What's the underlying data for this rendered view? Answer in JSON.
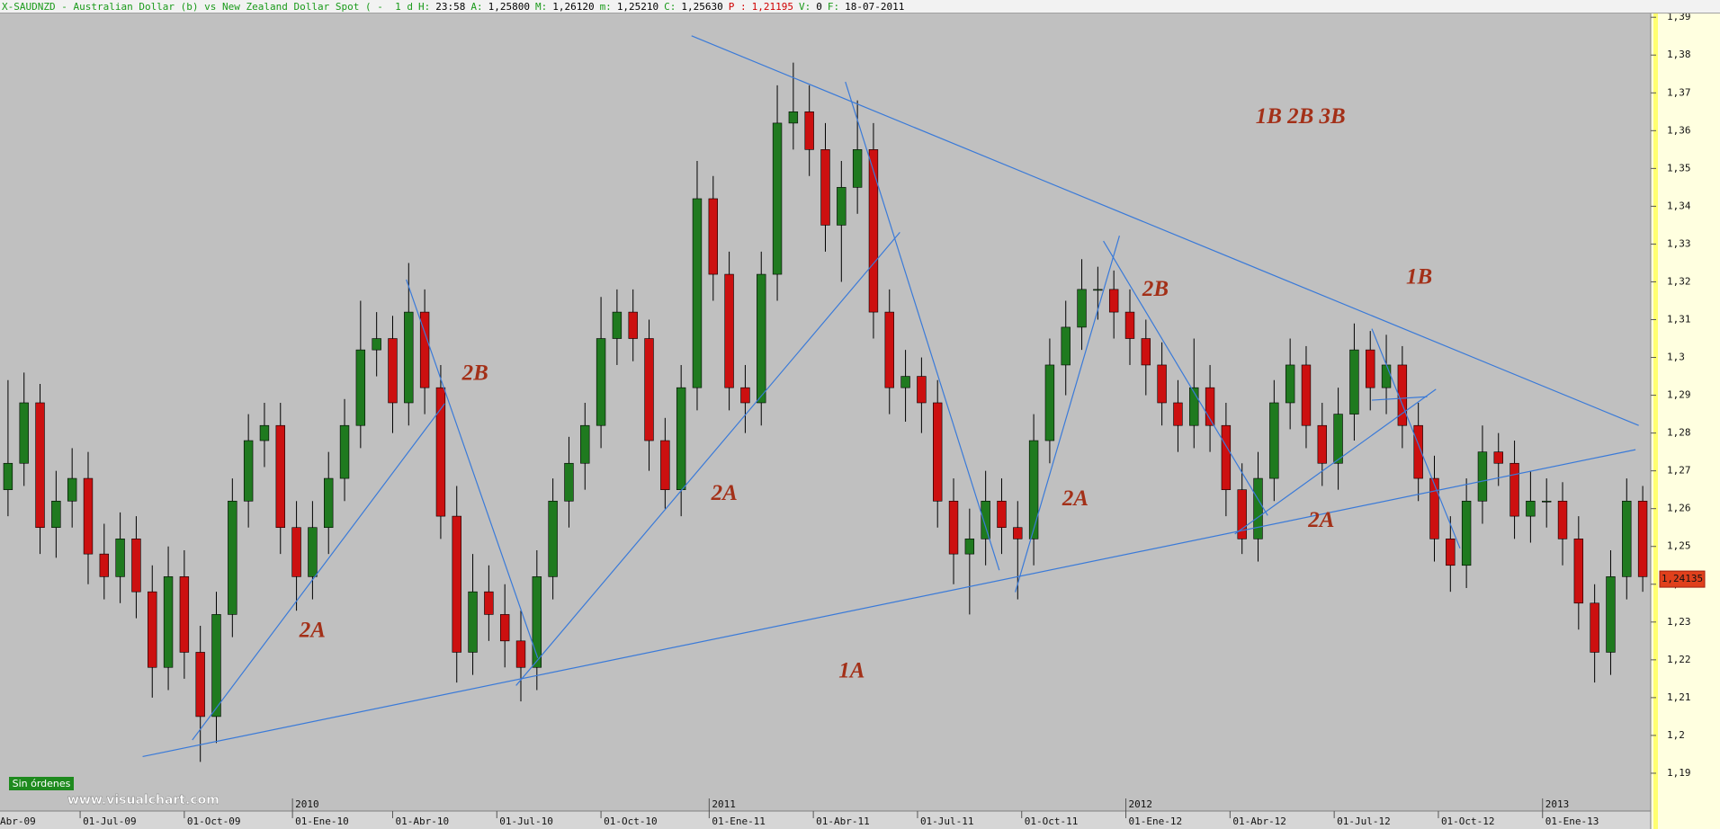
{
  "header": {
    "segments": [
      {
        "text": "X-SAUDNZD - Australian Dollar (b) vs New Zealand Dollar Spot ( -  1 d",
        "color": "#1a9a1a"
      },
      {
        "text": "H:",
        "color": "#1a9a1a"
      },
      {
        "text": "23:58",
        "color": "#000000"
      },
      {
        "text": "A:",
        "color": "#1a9a1a"
      },
      {
        "text": "1,25800",
        "color": "#000000"
      },
      {
        "text": "M:",
        "color": "#1a9a1a"
      },
      {
        "text": "1,26120",
        "color": "#000000"
      },
      {
        "text": "m:",
        "color": "#1a9a1a"
      },
      {
        "text": "1,25210",
        "color": "#000000"
      },
      {
        "text": "C:",
        "color": "#1a9a1a"
      },
      {
        "text": "1,25630",
        "color": "#000000"
      },
      {
        "text": "P :",
        "color": "#d00000"
      },
      {
        "text": "1,21195",
        "color": "#d00000"
      },
      {
        "text": "V:",
        "color": "#1a9a1a"
      },
      {
        "text": "0",
        "color": "#000000"
      },
      {
        "text": "F:",
        "color": "#1a9a1a"
      },
      {
        "text": "18-07-2011",
        "color": "#000000"
      }
    ]
  },
  "footer": {
    "status": "Sin órdenes",
    "watermark": "www.visualchart.com"
  },
  "chart_data": {
    "type": "candlestick",
    "up_color": "#1f7a1f",
    "down_color": "#cc1010",
    "line_color": "#3a7ad8",
    "annotation_color": "#a33018",
    "xlim": [
      0,
      206
    ],
    "ylim": [
      1.18,
      1.391
    ],
    "xticks": [
      {
        "value": -3,
        "label": "Abr-09"
      },
      {
        "value": 10,
        "label": "01-Jul-09"
      },
      {
        "value": 23,
        "label": "01-Oct-09"
      },
      {
        "value": 36.5,
        "label": "01-Ene-10"
      },
      {
        "value": 49,
        "label": "01-Abr-10"
      },
      {
        "value": 62,
        "label": "01-Jul-10"
      },
      {
        "value": 75,
        "label": "01-Oct-10"
      },
      {
        "value": 88.5,
        "label": "01-Ene-11"
      },
      {
        "value": 101.5,
        "label": "01-Abr-11"
      },
      {
        "value": 114.5,
        "label": "01-Jul-11"
      },
      {
        "value": 127.5,
        "label": "01-Oct-11"
      },
      {
        "value": 140.5,
        "label": "01-Ene-12"
      },
      {
        "value": 153.5,
        "label": "01-Abr-12"
      },
      {
        "value": 166.5,
        "label": "01-Jul-12"
      },
      {
        "value": 179.5,
        "label": "01-Oct-12"
      },
      {
        "value": 192.5,
        "label": "01-Ene-13"
      }
    ],
    "year_ticks": [
      {
        "value": 36.5,
        "label": "2010"
      },
      {
        "value": 88.5,
        "label": "2011"
      },
      {
        "value": 140.5,
        "label": "2012"
      },
      {
        "value": 192.5,
        "label": "2013"
      }
    ],
    "yticks": [
      {
        "value": 1.19,
        "label": "1,19"
      },
      {
        "value": 1.2,
        "label": "1,2"
      },
      {
        "value": 1.21,
        "label": "1,21"
      },
      {
        "value": 1.22,
        "label": "1,22"
      },
      {
        "value": 1.23,
        "label": "1,23"
      },
      {
        "value": 1.24,
        "label": "1,24"
      },
      {
        "value": 1.25,
        "label": "1,25"
      },
      {
        "value": 1.26,
        "label": "1,26"
      },
      {
        "value": 1.27,
        "label": "1,27"
      },
      {
        "value": 1.28,
        "label": "1,28"
      },
      {
        "value": 1.29,
        "label": "1,29"
      },
      {
        "value": 1.3,
        "label": "1,3"
      },
      {
        "value": 1.31,
        "label": "1,31"
      },
      {
        "value": 1.32,
        "label": "1,32"
      },
      {
        "value": 1.33,
        "label": "1,33"
      },
      {
        "value": 1.34,
        "label": "1,34"
      },
      {
        "value": 1.35,
        "label": "1,35"
      },
      {
        "value": 1.36,
        "label": "1,36"
      },
      {
        "value": 1.37,
        "label": "1,37"
      },
      {
        "value": 1.38,
        "label": "1,38"
      },
      {
        "value": 1.39,
        "label": "1,39"
      }
    ],
    "last_price": {
      "value": 1.24135,
      "label": "1,24135"
    },
    "candles": {
      "x": [
        1,
        3,
        5,
        7,
        9,
        11,
        13,
        15,
        17,
        19,
        21,
        23,
        25,
        27,
        29,
        31,
        33,
        35,
        37,
        39,
        41,
        43,
        45,
        47,
        49,
        51,
        53,
        55,
        57,
        59,
        61,
        63,
        65,
        67,
        69,
        71,
        73,
        75,
        77,
        79,
        81,
        83,
        85,
        87,
        89,
        91,
        93,
        95,
        97,
        99,
        101,
        103,
        105,
        107,
        109,
        111,
        113,
        115,
        117,
        119,
        121,
        123,
        125,
        127,
        129,
        131,
        133,
        135,
        137,
        139,
        141,
        143,
        145,
        147,
        149,
        151,
        153,
        155,
        157,
        159,
        161,
        163,
        165,
        167,
        169,
        171,
        173,
        175,
        177,
        179,
        181,
        183,
        185,
        187,
        189,
        191,
        193,
        195,
        197,
        199,
        201,
        203,
        205
      ],
      "open": [
        1.265,
        1.272,
        1.288,
        1.255,
        1.262,
        1.268,
        1.248,
        1.242,
        1.252,
        1.238,
        1.218,
        1.242,
        1.222,
        1.205,
        1.232,
        1.262,
        1.278,
        1.282,
        1.255,
        1.242,
        1.255,
        1.268,
        1.282,
        1.302,
        1.305,
        1.288,
        1.312,
        1.292,
        1.258,
        1.222,
        1.238,
        1.232,
        1.225,
        1.218,
        1.242,
        1.262,
        1.272,
        1.282,
        1.305,
        1.312,
        1.305,
        1.278,
        1.265,
        1.292,
        1.342,
        1.322,
        1.292,
        1.288,
        1.322,
        1.362,
        1.365,
        1.355,
        1.335,
        1.345,
        1.355,
        1.312,
        1.292,
        1.295,
        1.288,
        1.262,
        1.248,
        1.252,
        1.262,
        1.255,
        1.252,
        1.278,
        1.298,
        1.308,
        1.318,
        1.318,
        1.312,
        1.305,
        1.298,
        1.288,
        1.282,
        1.292,
        1.282,
        1.265,
        1.252,
        1.268,
        1.288,
        1.298,
        1.282,
        1.272,
        1.285,
        1.302,
        1.292,
        1.298,
        1.282,
        1.268,
        1.252,
        1.245,
        1.262,
        1.275,
        1.272,
        1.258,
        1.262,
        1.262,
        1.252,
        1.235,
        1.222,
        1.242,
        1.262
      ],
      "high": [
        1.294,
        1.296,
        1.293,
        1.27,
        1.276,
        1.275,
        1.256,
        1.259,
        1.258,
        1.245,
        1.25,
        1.249,
        1.229,
        1.238,
        1.268,
        1.285,
        1.288,
        1.288,
        1.262,
        1.262,
        1.275,
        1.289,
        1.315,
        1.312,
        1.311,
        1.325,
        1.318,
        1.298,
        1.266,
        1.248,
        1.245,
        1.24,
        1.233,
        1.249,
        1.268,
        1.279,
        1.288,
        1.316,
        1.318,
        1.318,
        1.31,
        1.284,
        1.298,
        1.352,
        1.348,
        1.328,
        1.298,
        1.328,
        1.372,
        1.378,
        1.372,
        1.362,
        1.352,
        1.368,
        1.362,
        1.318,
        1.302,
        1.3,
        1.294,
        1.268,
        1.26,
        1.27,
        1.268,
        1.262,
        1.285,
        1.305,
        1.315,
        1.326,
        1.324,
        1.323,
        1.318,
        1.31,
        1.304,
        1.294,
        1.305,
        1.298,
        1.288,
        1.272,
        1.275,
        1.294,
        1.305,
        1.303,
        1.288,
        1.292,
        1.309,
        1.307,
        1.306,
        1.303,
        1.288,
        1.274,
        1.258,
        1.268,
        1.282,
        1.28,
        1.278,
        1.27,
        1.268,
        1.267,
        1.258,
        1.24,
        1.249,
        1.268,
        1.266
      ],
      "low": [
        1.258,
        1.266,
        1.248,
        1.247,
        1.255,
        1.24,
        1.236,
        1.235,
        1.231,
        1.21,
        1.212,
        1.215,
        1.193,
        1.198,
        1.226,
        1.255,
        1.271,
        1.248,
        1.233,
        1.236,
        1.248,
        1.262,
        1.276,
        1.295,
        1.28,
        1.282,
        1.285,
        1.252,
        1.214,
        1.216,
        1.225,
        1.218,
        1.209,
        1.212,
        1.236,
        1.255,
        1.265,
        1.276,
        1.298,
        1.299,
        1.27,
        1.26,
        1.258,
        1.286,
        1.315,
        1.286,
        1.28,
        1.282,
        1.315,
        1.355,
        1.348,
        1.328,
        1.32,
        1.338,
        1.305,
        1.285,
        1.283,
        1.28,
        1.255,
        1.24,
        1.232,
        1.245,
        1.248,
        1.236,
        1.245,
        1.272,
        1.29,
        1.302,
        1.31,
        1.305,
        1.298,
        1.29,
        1.282,
        1.275,
        1.276,
        1.275,
        1.258,
        1.248,
        1.246,
        1.262,
        1.281,
        1.276,
        1.266,
        1.265,
        1.278,
        1.286,
        1.285,
        1.276,
        1.262,
        1.246,
        1.238,
        1.239,
        1.256,
        1.266,
        1.252,
        1.251,
        1.255,
        1.245,
        1.228,
        1.214,
        1.216,
        1.236,
        1.238
      ],
      "close": [
        1.272,
        1.288,
        1.255,
        1.262,
        1.268,
        1.248,
        1.242,
        1.252,
        1.238,
        1.218,
        1.242,
        1.222,
        1.205,
        1.232,
        1.262,
        1.278,
        1.282,
        1.255,
        1.242,
        1.255,
        1.268,
        1.282,
        1.302,
        1.305,
        1.288,
        1.312,
        1.292,
        1.258,
        1.222,
        1.238,
        1.232,
        1.225,
        1.218,
        1.242,
        1.262,
        1.272,
        1.282,
        1.305,
        1.312,
        1.305,
        1.278,
        1.265,
        1.292,
        1.342,
        1.322,
        1.292,
        1.288,
        1.322,
        1.362,
        1.365,
        1.355,
        1.335,
        1.345,
        1.355,
        1.312,
        1.292,
        1.295,
        1.288,
        1.262,
        1.248,
        1.252,
        1.262,
        1.255,
        1.252,
        1.278,
        1.298,
        1.308,
        1.318,
        1.318,
        1.312,
        1.305,
        1.298,
        1.288,
        1.282,
        1.292,
        1.282,
        1.265,
        1.252,
        1.268,
        1.288,
        1.298,
        1.282,
        1.272,
        1.285,
        1.302,
        1.292,
        1.298,
        1.282,
        1.268,
        1.252,
        1.245,
        1.262,
        1.275,
        1.272,
        1.258,
        1.262,
        1.262,
        1.252,
        1.235,
        1.222,
        1.242,
        1.262,
        1.242
      ]
    },
    "lines": [
      {
        "x": [
          86.3,
          204.5
        ],
        "y": [
          1.3851,
          1.282
        ]
      },
      {
        "x": [
          17.8,
          204.1
        ],
        "y": [
          1.1944,
          1.2756
        ]
      },
      {
        "x": [
          24.0,
          55.5
        ],
        "y": [
          1.1988,
          1.2878
        ]
      },
      {
        "x": [
          50.7,
          67.1
        ],
        "y": [
          1.3206,
          1.2205
        ]
      },
      {
        "x": [
          64.4,
          112.3
        ],
        "y": [
          1.2132,
          1.3331
        ]
      },
      {
        "x": [
          105.5,
          124.7
        ],
        "y": [
          1.3729,
          1.2437
        ]
      },
      {
        "x": [
          126.7,
          139.7
        ],
        "y": [
          1.2379,
          1.3322
        ]
      },
      {
        "x": [
          137.7,
          158.2
        ],
        "y": [
          1.3308,
          1.2582
        ]
      },
      {
        "x": [
          154.1,
          179.2
        ],
        "y": [
          1.2533,
          1.2916
        ]
      },
      {
        "x": [
          171.2,
          182.2
        ],
        "y": [
          1.3076,
          1.2495
        ]
      },
      {
        "x": [
          171.2,
          178.1
        ],
        "y": [
          1.2887,
          1.2896
        ]
      }
    ],
    "annotations": [
      {
        "text": "1B 2B 3B",
        "x": 162.3,
        "y": 1.3633
      },
      {
        "text": "1B",
        "x": 177.1,
        "y": 1.3209
      },
      {
        "text": "2B",
        "x": 144.2,
        "y": 1.3177
      },
      {
        "text": "2B",
        "x": 59.3,
        "y": 1.2954
      },
      {
        "text": "2A",
        "x": 90.4,
        "y": 1.2637
      },
      {
        "text": "2A",
        "x": 134.2,
        "y": 1.2623
      },
      {
        "text": "2A",
        "x": 164.9,
        "y": 1.2565
      },
      {
        "text": "2A",
        "x": 39.0,
        "y": 1.2274
      },
      {
        "text": "1A",
        "x": 106.3,
        "y": 1.2167
      }
    ]
  }
}
